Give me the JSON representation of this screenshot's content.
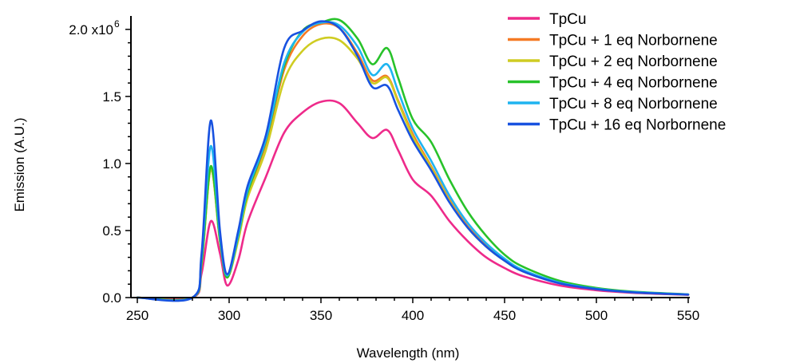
{
  "chart_data": {
    "type": "line",
    "xlabel": "Wavelength (nm)",
    "ylabel": "Emission (A.U.)",
    "xlim": [
      250,
      550
    ],
    "ylim": [
      0,
      2100000
    ],
    "x_ticks": [
      250,
      300,
      350,
      400,
      450,
      500,
      550
    ],
    "x_tick_labels": [
      "250",
      "300",
      "350",
      "400",
      "450",
      "500",
      "550"
    ],
    "y_ticks": [
      0,
      500000,
      1000000,
      1500000,
      2000000
    ],
    "y_tick_labels": [
      "0.0",
      "0.5",
      "1.0",
      "1.5",
      "2.0 x10"
    ],
    "y_exponent": "6",
    "legend_position": "top-right",
    "x": [
      250,
      280,
      285,
      290,
      295,
      299,
      305,
      310,
      320,
      330,
      340,
      350,
      360,
      370,
      378,
      386,
      392,
      400,
      410,
      420,
      430,
      440,
      450,
      460,
      480,
      500,
      520,
      550
    ],
    "series": [
      {
        "name": "TpCu",
        "color": "#ee2a8a",
        "values": [
          0,
          0,
          180000,
          570000,
          330000,
          90000,
          280000,
          560000,
          900000,
          1230000,
          1380000,
          1460000,
          1450000,
          1300000,
          1190000,
          1250000,
          1100000,
          880000,
          760000,
          570000,
          420000,
          300000,
          220000,
          160000,
          90000,
          55000,
          35000,
          20000
        ]
      },
      {
        "name": "TpCu + 1 eq Norbornene",
        "color": "#f57a25",
        "values": [
          0,
          0,
          250000,
          960000,
          420000,
          150000,
          450000,
          770000,
          1150000,
          1700000,
          1950000,
          2040000,
          2010000,
          1820000,
          1620000,
          1650000,
          1470000,
          1220000,
          980000,
          730000,
          530000,
          390000,
          280000,
          200000,
          110000,
          65000,
          40000,
          22000
        ]
      },
      {
        "name": "TpCu + 2 eq Norbornene",
        "color": "#cfcc22",
        "values": [
          0,
          0,
          250000,
          960000,
          420000,
          150000,
          430000,
          740000,
          1100000,
          1620000,
          1840000,
          1930000,
          1920000,
          1780000,
          1600000,
          1640000,
          1460000,
          1200000,
          970000,
          720000,
          520000,
          380000,
          275000,
          195000,
          108000,
          64000,
          40000,
          22000
        ]
      },
      {
        "name": "TpCu + 4 eq Norbornene",
        "color": "#28c22a",
        "values": [
          0,
          0,
          260000,
          980000,
          430000,
          150000,
          460000,
          780000,
          1170000,
          1730000,
          1990000,
          2050000,
          2070000,
          1930000,
          1740000,
          1860000,
          1640000,
          1330000,
          1160000,
          880000,
          640000,
          460000,
          320000,
          230000,
          125000,
          72000,
          44000,
          24000
        ]
      },
      {
        "name": "TpCu + 8 eq Norbornene",
        "color": "#1eb4f0",
        "values": [
          0,
          0,
          300000,
          1130000,
          460000,
          165000,
          470000,
          800000,
          1180000,
          1750000,
          1980000,
          2050000,
          2030000,
          1870000,
          1660000,
          1740000,
          1540000,
          1260000,
          1020000,
          760000,
          555000,
          405000,
          290000,
          205000,
          112000,
          66000,
          41000,
          23000
        ]
      },
      {
        "name": "TpCu + 16 eq Norbornene",
        "color": "#1852e0",
        "values": [
          0,
          0,
          330000,
          1320000,
          500000,
          175000,
          500000,
          830000,
          1210000,
          1860000,
          1990000,
          2060000,
          2010000,
          1800000,
          1570000,
          1580000,
          1400000,
          1170000,
          950000,
          710000,
          520000,
          380000,
          275000,
          195000,
          106000,
          63000,
          39000,
          22000
        ]
      }
    ]
  }
}
